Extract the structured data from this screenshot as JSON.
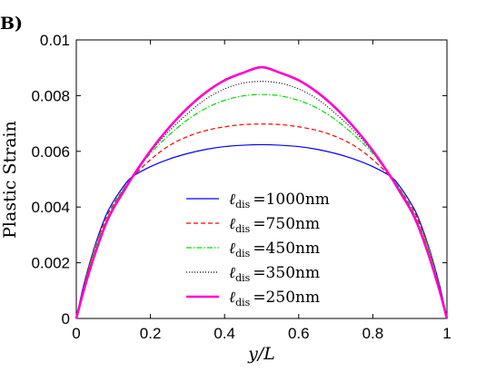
{
  "panel_label": "B)",
  "chart_data": {
    "type": "line",
    "xlabel": "y/L",
    "ylabel": "Plastic Strain",
    "xlim": [
      0,
      1
    ],
    "ylim": [
      0,
      0.01
    ],
    "x_ticks": [
      0,
      0.2,
      0.4,
      0.6,
      0.8,
      1
    ],
    "x_tick_labels": [
      "0",
      "0.2",
      "0.4",
      "0.6",
      "0.8",
      "1"
    ],
    "y_ticks": [
      0,
      0.002,
      0.004,
      0.006,
      0.008,
      0.01
    ],
    "y_tick_labels": [
      "0",
      "0.002",
      "0.004",
      "0.006",
      "0.008",
      "0.01"
    ],
    "grid": false,
    "legend_position": "lower-center",
    "x": [
      0,
      0.02,
      0.05,
      0.08,
      0.1,
      0.125,
      0.15,
      0.2,
      0.25,
      0.3,
      0.35,
      0.4,
      0.45,
      0.5,
      0.55,
      0.6,
      0.65,
      0.7,
      0.75,
      0.8,
      0.85,
      0.875,
      0.9,
      0.92,
      0.95,
      0.98,
      1
    ],
    "series": [
      {
        "name": "=1000nm",
        "legend_symbol": "ℓ",
        "legend_subscript": "dis",
        "color": "#0000ff",
        "dash": "solid",
        "width": 1.2,
        "values": [
          0,
          0.0012,
          0.0026,
          0.0037,
          0.0042,
          0.0047,
          0.00508,
          0.00545,
          0.00572,
          0.00592,
          0.00607,
          0.00617,
          0.00622,
          0.00624,
          0.00622,
          0.00617,
          0.00607,
          0.00592,
          0.00572,
          0.00545,
          0.00508,
          0.0047,
          0.0042,
          0.0037,
          0.0026,
          0.0012,
          0
        ]
      },
      {
        "name": "=750nm",
        "legend_symbol": "ℓ",
        "legend_subscript": "dis",
        "color": "#ff0000",
        "dash": "dashed",
        "width": 1.2,
        "values": [
          0,
          0.00115,
          0.00255,
          0.0036,
          0.0041,
          0.0046,
          0.00505,
          0.0057,
          0.0062,
          0.00653,
          0.00675,
          0.00688,
          0.00696,
          0.00698,
          0.00696,
          0.00688,
          0.00675,
          0.00653,
          0.0062,
          0.0057,
          0.00505,
          0.0046,
          0.0041,
          0.0036,
          0.00255,
          0.00115,
          0
        ]
      },
      {
        "name": "=450nm",
        "legend_symbol": "ℓ",
        "legend_subscript": "dis",
        "color": "#00dd00",
        "dash": "dashdot",
        "width": 1.2,
        "values": [
          0,
          0.0011,
          0.0025,
          0.0035,
          0.00405,
          0.0046,
          0.00508,
          0.00592,
          0.00658,
          0.00713,
          0.00755,
          0.00783,
          0.00799,
          0.00804,
          0.00799,
          0.00783,
          0.00755,
          0.00713,
          0.00658,
          0.00592,
          0.00508,
          0.0046,
          0.00405,
          0.0035,
          0.0025,
          0.0011,
          0
        ]
      },
      {
        "name": "=350nm",
        "legend_symbol": "ℓ",
        "legend_subscript": "dis",
        "color": "#000000",
        "dash": "dotted",
        "width": 1.2,
        "values": [
          0,
          0.00105,
          0.0024,
          0.00345,
          0.004,
          0.00455,
          0.00506,
          0.00598,
          0.00672,
          0.00735,
          0.00788,
          0.00824,
          0.00845,
          0.00851,
          0.00845,
          0.00824,
          0.00788,
          0.00735,
          0.00672,
          0.00598,
          0.00506,
          0.00455,
          0.004,
          0.00345,
          0.0024,
          0.00105,
          0
        ]
      },
      {
        "name": "=250nm",
        "legend_symbol": "ℓ",
        "legend_subscript": "dis",
        "color": "#ff00cc",
        "dash": "solid",
        "width": 2.6,
        "values": [
          0,
          0.001,
          0.0023,
          0.0034,
          0.00395,
          0.0045,
          0.00505,
          0.00602,
          0.00685,
          0.00755,
          0.00812,
          0.00855,
          0.00882,
          0.00902,
          0.00882,
          0.00855,
          0.00812,
          0.00755,
          0.00685,
          0.00602,
          0.00505,
          0.0045,
          0.00395,
          0.0034,
          0.0023,
          0.001,
          0
        ]
      }
    ]
  }
}
